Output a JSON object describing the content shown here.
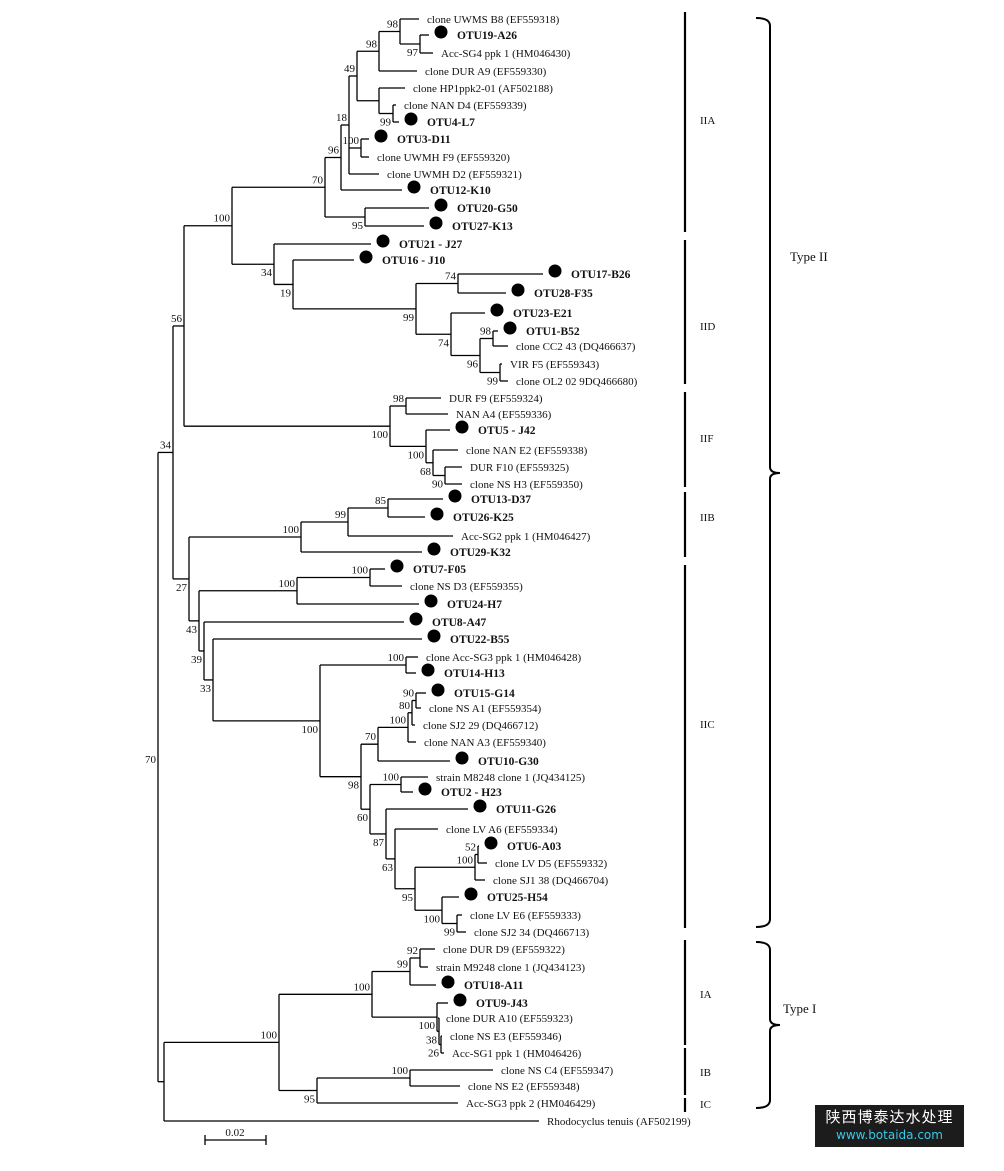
{
  "leaves": [
    {
      "name": "clone UWMS B8 (EF559318)",
      "otu": false
    },
    {
      "name": "OTU19-A26",
      "otu": true
    },
    {
      "name": "Acc-SG4 ppk 1 (HM046430)",
      "otu": false
    },
    {
      "name": "clone DUR A9 (EF559330)",
      "otu": false
    },
    {
      "name": "clone HP1ppk2-01 (AF502188)",
      "otu": false
    },
    {
      "name": "clone NAN D4 (EF559339)",
      "otu": false
    },
    {
      "name": "OTU4-L7",
      "otu": true
    },
    {
      "name": "OTU3-D11",
      "otu": true
    },
    {
      "name": "clone UWMH F9 (EF559320)",
      "otu": false
    },
    {
      "name": "clone UWMH D2 (EF559321)",
      "otu": false
    },
    {
      "name": "OTU12-K10",
      "otu": true
    },
    {
      "name": "OTU20-G50",
      "otu": true
    },
    {
      "name": "OTU27-K13",
      "otu": true
    },
    {
      "name": "OTU21 - J27",
      "otu": true
    },
    {
      "name": "OTU16 - J10",
      "otu": true
    },
    {
      "name": "OTU17-B26",
      "otu": true
    },
    {
      "name": "OTU28-F35",
      "otu": true
    },
    {
      "name": "OTU23-E21",
      "otu": true
    },
    {
      "name": "OTU1-B52",
      "otu": true
    },
    {
      "name": "clone CC2 43 (DQ466637)",
      "otu": false
    },
    {
      "name": "VIR F5 (EF559343)",
      "otu": false
    },
    {
      "name": "clone OL2 02 9DQ466680)",
      "otu": false
    },
    {
      "name": "DUR F9 (EF559324)",
      "otu": false
    },
    {
      "name": "NAN A4 (EF559336)",
      "otu": false
    },
    {
      "name": "OTU5 - J42",
      "otu": true
    },
    {
      "name": "clone NAN E2 (EF559338)",
      "otu": false
    },
    {
      "name": "DUR F10 (EF559325)",
      "otu": false
    },
    {
      "name": "clone NS H3 (EF559350)",
      "otu": false
    },
    {
      "name": "OTU13-D37",
      "otu": true
    },
    {
      "name": "OTU26-K25",
      "otu": true
    },
    {
      "name": "Acc-SG2 ppk 1 (HM046427)",
      "otu": false
    },
    {
      "name": "OTU29-K32",
      "otu": true
    },
    {
      "name": "OTU7-F05",
      "otu": true
    },
    {
      "name": "clone NS D3 (EF559355)",
      "otu": false
    },
    {
      "name": "OTU24-H7",
      "otu": true
    },
    {
      "name": "OTU8-A47",
      "otu": true
    },
    {
      "name": "OTU22-B55",
      "otu": true
    },
    {
      "name": "clone Acc-SG3 ppk 1 (HM046428)",
      "otu": false
    },
    {
      "name": "OTU14-H13",
      "otu": true
    },
    {
      "name": "OTU15-G14",
      "otu": true
    },
    {
      "name": "clone NS A1 (EF559354)",
      "otu": false
    },
    {
      "name": "clone SJ2 29 (DQ466712)",
      "otu": false
    },
    {
      "name": "clone NAN A3 (EF559340)",
      "otu": false
    },
    {
      "name": "OTU10-G30",
      "otu": true
    },
    {
      "name": "strain M8248 clone 1 (JQ434125)",
      "otu": false
    },
    {
      "name": "OTU2 - H23",
      "otu": true
    },
    {
      "name": "OTU11-G26",
      "otu": true
    },
    {
      "name": "clone LV A6 (EF559334)",
      "otu": false
    },
    {
      "name": "OTU6-A03",
      "otu": true
    },
    {
      "name": "clone LV D5 (EF559332)",
      "otu": false
    },
    {
      "name": "clone SJ1 38 (DQ466704)",
      "otu": false
    },
    {
      "name": "OTU25-H54",
      "otu": true
    },
    {
      "name": "clone LV E6 (EF559333)",
      "otu": false
    },
    {
      "name": "clone SJ2 34 (DQ466713)",
      "otu": false
    },
    {
      "name": "clone DUR D9 (EF559322)",
      "otu": false
    },
    {
      "name": "strain M9248 clone 1 (JQ434123)",
      "otu": false
    },
    {
      "name": "OTU18-A11",
      "otu": true
    },
    {
      "name": "OTU9-J43",
      "otu": true
    },
    {
      "name": "clone DUR A10 (EF559323)",
      "otu": false
    },
    {
      "name": "clone NS E3 (EF559346)",
      "otu": false
    },
    {
      "name": "Acc-SG1 ppk 1 (HM046426)",
      "otu": false
    },
    {
      "name": "clone NS C4 (EF559347)",
      "otu": false
    },
    {
      "name": "clone NS E2 (EF559348)",
      "otu": false
    },
    {
      "name": "Acc-SG3 ppk 2 (HM046429)",
      "otu": false
    },
    {
      "name": "Rhodocyclus tenuis (AF502199)",
      "otu": false
    }
  ],
  "bootstraps": [
    "98",
    "98",
    "97",
    "49",
    "18",
    "99",
    "100",
    "96",
    "70",
    "100",
    "56",
    "95",
    "34",
    "19",
    "74",
    "99",
    "98",
    "74",
    "96",
    "99",
    "34",
    "70",
    "98",
    "100",
    "100",
    "68",
    "90",
    "85",
    "99",
    "100",
    "100",
    "100",
    "27",
    "43",
    "39",
    "33",
    "100",
    "90",
    "80",
    "100",
    "70",
    "100",
    "100",
    "98",
    "60",
    "52",
    "100",
    "87",
    "63",
    "95",
    "100",
    "99",
    "92",
    "99",
    "100",
    "100",
    "100",
    "38",
    "26",
    "100",
    "95"
  ],
  "clades": [
    "IIA",
    "IID",
    "IIF",
    "IIB",
    "IIC",
    "IA",
    "IB",
    "IC"
  ],
  "groups": [
    "Type II",
    "Type I"
  ],
  "scale_bar": "0.02",
  "marker_color": "#000000",
  "watermark": {
    "cn": "陕西博泰达水处理",
    "url": "www.botaida.com"
  }
}
